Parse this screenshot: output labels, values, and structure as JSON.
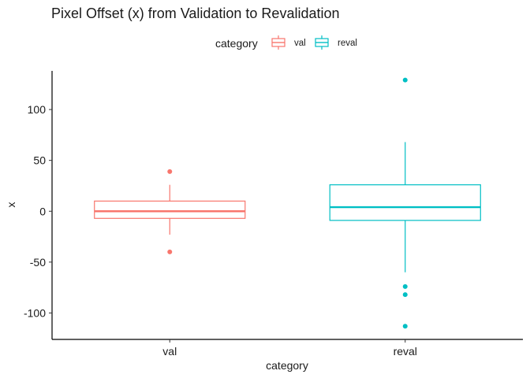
{
  "chart_data": {
    "type": "boxplot",
    "title": "Pixel Offset (x) from Validation to Revalidation",
    "xlabel": "category",
    "ylabel": "x",
    "ylim": [
      -126,
      138
    ],
    "yticks": [
      -100,
      -50,
      0,
      50,
      100
    ],
    "categories": [
      "val",
      "reval"
    ],
    "legend": {
      "title": "category",
      "position": "top",
      "entries": [
        "val",
        "reval"
      ]
    },
    "grid": false,
    "series": [
      {
        "name": "val",
        "color": "#F8766D",
        "q1": -7,
        "median": 0,
        "q3": 10,
        "whisker_low": -23,
        "whisker_high": 26,
        "outliers": [
          39,
          -40
        ]
      },
      {
        "name": "reval",
        "color": "#00BFC4",
        "q1": -9,
        "median": 4,
        "q3": 26,
        "whisker_low": -60,
        "whisker_high": 68,
        "outliers": [
          129,
          -74,
          -82,
          -113
        ]
      }
    ]
  }
}
